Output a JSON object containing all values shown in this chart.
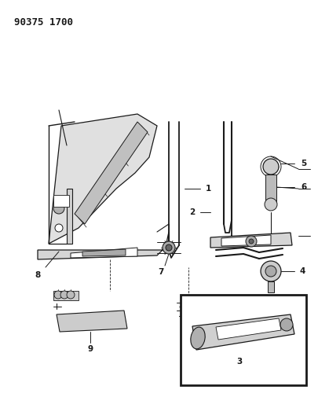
{
  "title_code": "90375 1700",
  "bg_color": "#ffffff",
  "line_color": "#1a1a1a",
  "gray_fill": "#d8d8d8",
  "dark_gray": "#888888",
  "label_fontsize": 7.5,
  "title_fontsize": 9
}
